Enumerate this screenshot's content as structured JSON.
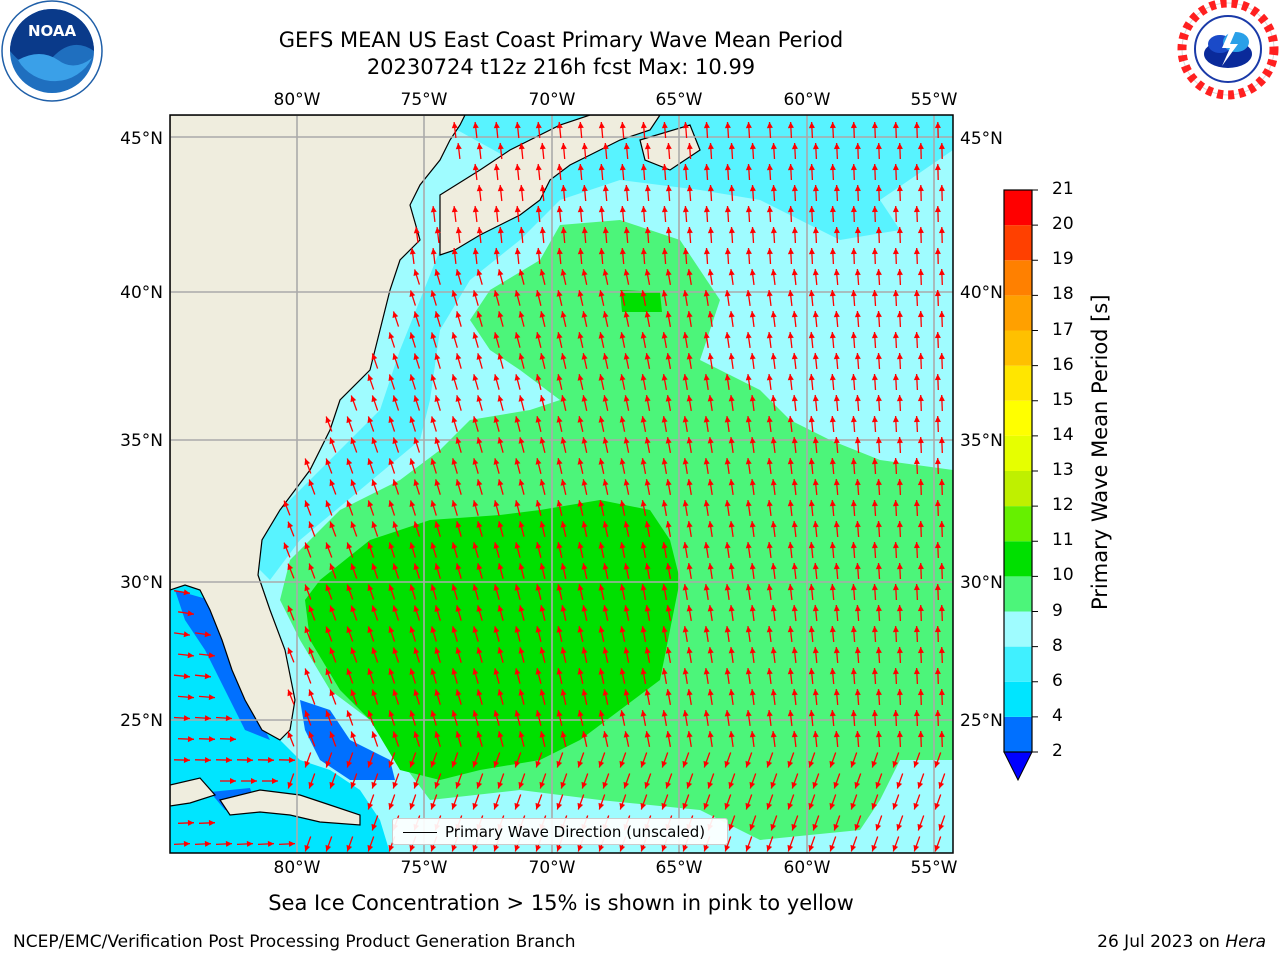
{
  "title": {
    "line1": "GEFS MEAN US East Coast Primary Wave Mean Period",
    "line2": "20230724 t12z 216h fcst   Max: 10.99"
  },
  "logos": {
    "left": {
      "icon": "noaa-logo",
      "text": "NOAA"
    },
    "right": {
      "icon": "nws-logo"
    }
  },
  "map": {
    "lon_ticks": [
      "80°W",
      "75°W",
      "70°W",
      "65°W",
      "60°W",
      "55°W"
    ],
    "lat_ticks": [
      "45°N",
      "40°N",
      "35°N",
      "30°N",
      "25°N"
    ],
    "lon_range": [
      -85,
      -54.5
    ],
    "lat_range": [
      20.5,
      46
    ],
    "grid": true,
    "land_color": "#efedde",
    "arrow_color": "#ff0000",
    "legend_label": "Primary Wave Direction (unscaled)"
  },
  "colorbar": {
    "label": "Primary Wave Mean Period [s]",
    "ticks": [
      "2",
      "4",
      "6",
      "8",
      "9",
      "10",
      "11",
      "12",
      "13",
      "14",
      "15",
      "16",
      "17",
      "18",
      "19",
      "20",
      "21"
    ],
    "colors": [
      "#0070ff",
      "#00e5ff",
      "#40f0ff",
      "#9ffcff",
      "#4cf57a",
      "#00e000",
      "#66f000",
      "#bff000",
      "#e6ff00",
      "#ffff00",
      "#ffe600",
      "#ffc000",
      "#ffa000",
      "#ff8000",
      "#ff4000",
      "#ff0000"
    ],
    "extend_color": "#0000ff"
  },
  "subtitle": "Sea Ice Concentration > 15% is shown in pink to yellow",
  "footer": {
    "left": "NCEP/EMC/Verification Post Processing Product Generation Branch",
    "date": "26 Jul 2023 on ",
    "machine": "Hera"
  }
}
